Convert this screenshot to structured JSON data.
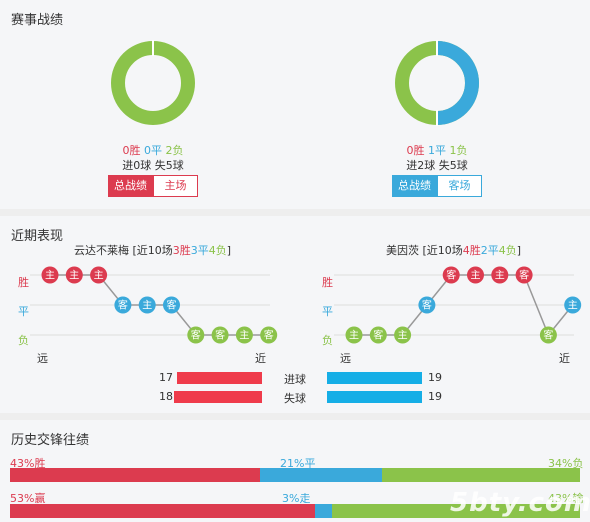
{
  "section1": {
    "title": "赛事战绩",
    "left": {
      "results": {
        "win": "0胜",
        "draw": "0平",
        "loss": "2负"
      },
      "goals": "进0球  失5球",
      "tabs": {
        "active": "总战绩",
        "other": "主场"
      },
      "donut": {
        "win": 0,
        "draw": 0,
        "loss": 2
      }
    },
    "right": {
      "results": {
        "win": "0胜",
        "draw": "1平",
        "loss": "1负"
      },
      "goals": "进2球  失5球",
      "tabs": {
        "active": "总战绩",
        "other": "客场"
      },
      "donut": {
        "win": 0,
        "draw": 1,
        "loss": 1
      }
    }
  },
  "section2": {
    "title": "近期表现",
    "left": {
      "team": "云达不莱梅",
      "summary": {
        "pre": " [近10场",
        "win": "3胜",
        "draw": "3平",
        "loss": "4负",
        "post": "]"
      },
      "results": [
        "W",
        "W",
        "W",
        "D",
        "D",
        "D",
        "L",
        "L",
        "L",
        "L"
      ],
      "venues": [
        "主",
        "主",
        "主",
        "客",
        "主",
        "客",
        "客",
        "客",
        "主",
        "客"
      ]
    },
    "right": {
      "team": "美因茨",
      "summary": {
        "pre": " [近10场",
        "win": "4胜",
        "draw": "2平",
        "loss": "4负",
        "post": "]"
      },
      "results": [
        "L",
        "L",
        "L",
        "D",
        "W",
        "W",
        "W",
        "W",
        "L",
        "D"
      ],
      "venues": [
        "主",
        "客",
        "主",
        "客",
        "客",
        "主",
        "主",
        "客",
        "客",
        "主"
      ]
    },
    "y_labels": {
      "win": "胜",
      "draw": "平",
      "loss": "负"
    },
    "x_labels": {
      "far": "远",
      "near": "近"
    },
    "stats": [
      {
        "label": "进球",
        "home": 17,
        "away": 19
      },
      {
        "label": "失球",
        "home": 18,
        "away": 19
      }
    ],
    "colors": {
      "win": "#dc3b4f",
      "draw": "#3aa9db",
      "loss": "#8bc34a",
      "home_bar": "#ef3b4b",
      "away_bar": "#15aee6"
    }
  },
  "section3": {
    "title": "历史交锋往绩",
    "rows": [
      {
        "left_label": "43%胜",
        "mid_label": "21%平",
        "right_label": "34%负",
        "values": [
          43,
          21,
          34
        ],
        "colors": [
          "#dc3b4f",
          "#3aa9db",
          "#8bc34a"
        ]
      },
      {
        "left_label": "53%赢",
        "mid_label": "3%走",
        "right_label": "43%输",
        "values": [
          53,
          3,
          43
        ],
        "colors": [
          "#dc3b4f",
          "#3aa9db",
          "#8bc34a"
        ]
      }
    ]
  },
  "watermark": "5bty.com"
}
